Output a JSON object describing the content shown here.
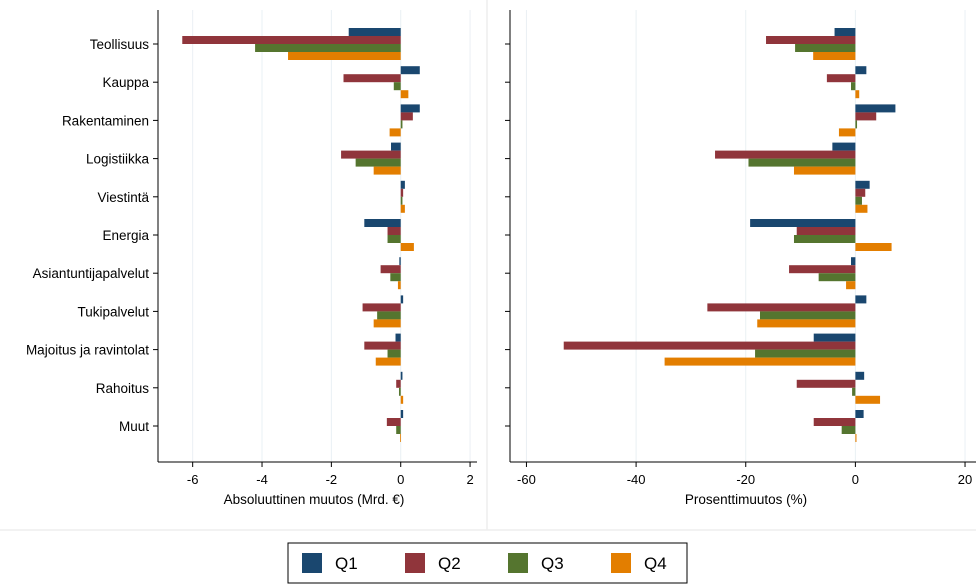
{
  "chart_data": [
    {
      "type": "bar",
      "orientation": "horizontal",
      "xlabel": "Absoluuttinen muutos (Mrd. €)",
      "xlim": [
        -7,
        2.2
      ],
      "xticks": [
        -6,
        -4,
        -2,
        0,
        2
      ],
      "xtick_labels": [
        "-6",
        "-4",
        "-2",
        "0",
        "2"
      ],
      "grid": true,
      "categories": [
        "Teollisuus",
        "Kauppa",
        "Rakentaminen",
        "Logistiikka",
        "Viestintä",
        "Energia",
        "Asiantuntijapalvelut",
        "Tukipalvelut",
        "Majoitus ja ravintolat",
        "Rahoitus",
        "Muut"
      ],
      "series": [
        {
          "name": "Q1",
          "values": [
            -1.5,
            0.55,
            0.55,
            -0.28,
            0.12,
            -1.05,
            -0.04,
            0.07,
            -0.15,
            0.05,
            0.07
          ]
        },
        {
          "name": "Q2",
          "values": [
            -6.3,
            -1.65,
            0.35,
            -1.72,
            0.07,
            -0.38,
            -0.58,
            -1.1,
            -1.05,
            -0.13,
            -0.4
          ]
        },
        {
          "name": "Q3",
          "values": [
            -4.2,
            -0.2,
            0.05,
            -1.3,
            0.05,
            -0.38,
            -0.3,
            -0.68,
            -0.38,
            -0.05,
            -0.13
          ]
        },
        {
          "name": "Q4",
          "values": [
            -3.25,
            0.22,
            -0.32,
            -0.78,
            0.12,
            0.38,
            -0.08,
            -0.78,
            -0.72,
            0.07,
            -0.02
          ]
        }
      ]
    },
    {
      "type": "bar",
      "orientation": "horizontal",
      "xlabel": "Prosenttimuutos (%)",
      "xlim": [
        -63,
        22
      ],
      "xticks": [
        -60,
        -40,
        -20,
        0,
        20
      ],
      "xtick_labels": [
        "-60",
        "-40",
        "-20",
        "0",
        "20"
      ],
      "grid": true,
      "categories": [
        "Teollisuus",
        "Kauppa",
        "Rakentaminen",
        "Logistiikka",
        "Viestintä",
        "Energia",
        "Asiantuntijapalvelut",
        "Tukipalvelut",
        "Majoitus ja ravintolat",
        "Rahoitus",
        "Muut"
      ],
      "series": [
        {
          "name": "Q1",
          "values": [
            -3.8,
            2.0,
            7.3,
            -4.2,
            2.6,
            -19.2,
            -0.8,
            2.0,
            -7.6,
            1.6,
            1.5
          ]
        },
        {
          "name": "Q2",
          "values": [
            -16.3,
            -5.2,
            3.8,
            -25.6,
            1.8,
            -10.7,
            -12.1,
            -27.0,
            -53.2,
            -10.7,
            -7.6
          ]
        },
        {
          "name": "Q3",
          "values": [
            -11.0,
            -0.8,
            0.3,
            -19.5,
            1.2,
            -11.2,
            -6.7,
            -17.4,
            -18.3,
            -0.6,
            -2.5
          ]
        },
        {
          "name": "Q4",
          "values": [
            -7.7,
            0.7,
            -3.0,
            -11.2,
            2.2,
            6.6,
            -1.7,
            -17.9,
            -34.8,
            4.5,
            0.2
          ]
        }
      ]
    }
  ],
  "legend": {
    "placement": "bottom-center",
    "items": [
      {
        "label": "Q1",
        "color": "#1a476f"
      },
      {
        "label": "Q2",
        "color": "#90353b"
      },
      {
        "label": "Q3",
        "color": "#55752f"
      },
      {
        "label": "Q4",
        "color": "#e37e00"
      }
    ]
  },
  "colors": {
    "Q1": "#1a476f",
    "Q2": "#90353b",
    "Q3": "#55752f",
    "Q4": "#e37e00"
  }
}
